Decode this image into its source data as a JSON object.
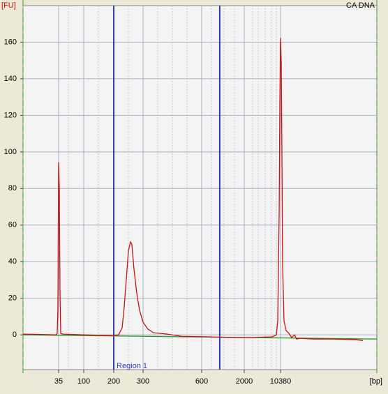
{
  "chart_data": {
    "type": "line",
    "title": "CA DNA",
    "y_label": "[FU]",
    "x_label": "[bp]",
    "region": {
      "label": "Region 1",
      "range": [
        200,
        1000
      ],
      "color": "#2b3fb8"
    },
    "xlim": [
      8,
      800000
    ],
    "xticks": [
      35,
      100,
      200,
      300,
      600,
      2000,
      10380
    ],
    "ylim": [
      -19,
      180
    ],
    "yticks": [
      0,
      20,
      40,
      60,
      80,
      100,
      120,
      140,
      160
    ],
    "grid": true,
    "series": [
      {
        "color": "#cc1111",
        "x": [
          8,
          17.5,
          31.2,
          33.0,
          34.0,
          35,
          36.0,
          37.1,
          38.2,
          41.7,
          100,
          190.6,
          214,
          224.6,
          231.1,
          237.9,
          244.9,
          252.1,
          256.8,
          264.4,
          274.9,
          286.0,
          300,
          317.9,
          339.6,
          368.6,
          400.6,
          472.6,
          745,
          1348,
          2746,
          7100,
          8585,
          9140,
          9760,
          10070,
          10380,
          10710,
          11040,
          11400,
          12140,
          13360,
          15150,
          17190,
          19500,
          21430,
          25070,
          47100,
          121000,
          311000,
          427000
        ],
        "values": [
          0.4,
          0.2,
          0,
          0.8,
          15.3,
          94.3,
          80.2,
          22.9,
          0.8,
          0.4,
          0,
          -0.4,
          0,
          3.8,
          15.3,
          30.5,
          45.8,
          50.8,
          49.6,
          36.3,
          22.9,
          13.4,
          6.9,
          3.1,
          1.1,
          0.8,
          0.4,
          -0.8,
          -1.1,
          -1.5,
          -1.5,
          -1.1,
          0,
          7.6,
          68.7,
          126,
          162.3,
          148.9,
          99.3,
          38.2,
          7.6,
          2.3,
          0.8,
          -1.5,
          0,
          -2.3,
          -1.9,
          -2.3,
          -2.3,
          -2.7,
          -3.1
        ]
      },
      {
        "color": "#2e9a2e",
        "x": [
          8,
          800000
        ],
        "values": [
          0,
          -2.3
        ]
      }
    ]
  }
}
